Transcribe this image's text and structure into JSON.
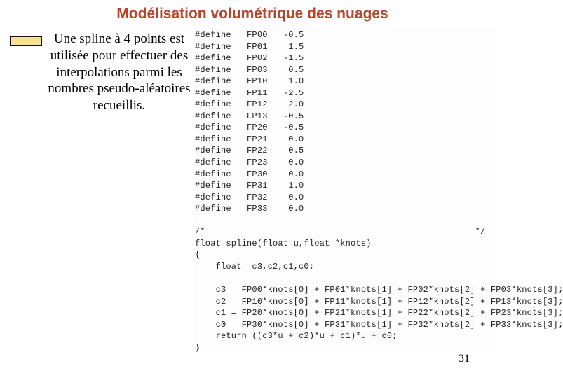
{
  "title": "Modélisation volumétrique des nuages",
  "body_text": "Une spline à 4 points est utilisée pour effectuer des interpolations parmi les nombres pseudo-aléatoires recueillis.",
  "page_number": "31",
  "title_color": "#b5452c",
  "bullet_fill": "#f7e197",
  "code": {
    "defines": [
      {
        "kw": "#define",
        "name": "FP00",
        "val": "-0.5"
      },
      {
        "kw": "#define",
        "name": "FP01",
        "val": " 1.5"
      },
      {
        "kw": "#define",
        "name": "FP02",
        "val": "-1.5"
      },
      {
        "kw": "#define",
        "name": "FP03",
        "val": " 0.5"
      },
      {
        "kw": "#define",
        "name": "FP10",
        "val": " 1.0"
      },
      {
        "kw": "#define",
        "name": "FP11",
        "val": "-2.5"
      },
      {
        "kw": "#define",
        "name": "FP12",
        "val": " 2.0"
      },
      {
        "kw": "#define",
        "name": "FP13",
        "val": "-0.5"
      },
      {
        "kw": "#define",
        "name": "FP20",
        "val": "-0.5"
      },
      {
        "kw": "#define",
        "name": "FP21",
        "val": " 0.0"
      },
      {
        "kw": "#define",
        "name": "FP22",
        "val": " 0.5"
      },
      {
        "kw": "#define",
        "name": "FP23",
        "val": " 0.0"
      },
      {
        "kw": "#define",
        "name": "FP30",
        "val": " 0.0"
      },
      {
        "kw": "#define",
        "name": "FP31",
        "val": " 1.0"
      },
      {
        "kw": "#define",
        "name": "FP32",
        "val": " 0.0"
      },
      {
        "kw": "#define",
        "name": "FP33",
        "val": " 0.0"
      }
    ],
    "comment_open": "/*",
    "comment_close": "*/",
    "fn_sig": "float spline(float u,float *knots)",
    "brace_open": "{",
    "decl": "    float  c3,c2,c1,c0;",
    "assigns": [
      "    c3 = FP00*knots[0] + FP01*knots[1] + FP02*knots[2] + FP03*knots[3];",
      "    c2 = FP10*knots[0] + FP11*knots[1] + FP12*knots[2] + FP13*knots[3];",
      "    c1 = FP20*knots[0] + FP21*knots[1] + FP22*knots[2] + FP23*knots[3];",
      "    c0 = FP30*knots[0] + FP31*knots[1] + FP32*knots[2] + FP33*knots[3];"
    ],
    "ret": "    return ((c3*u + c2)*u + c1)*u + c0;",
    "brace_close": "}"
  }
}
